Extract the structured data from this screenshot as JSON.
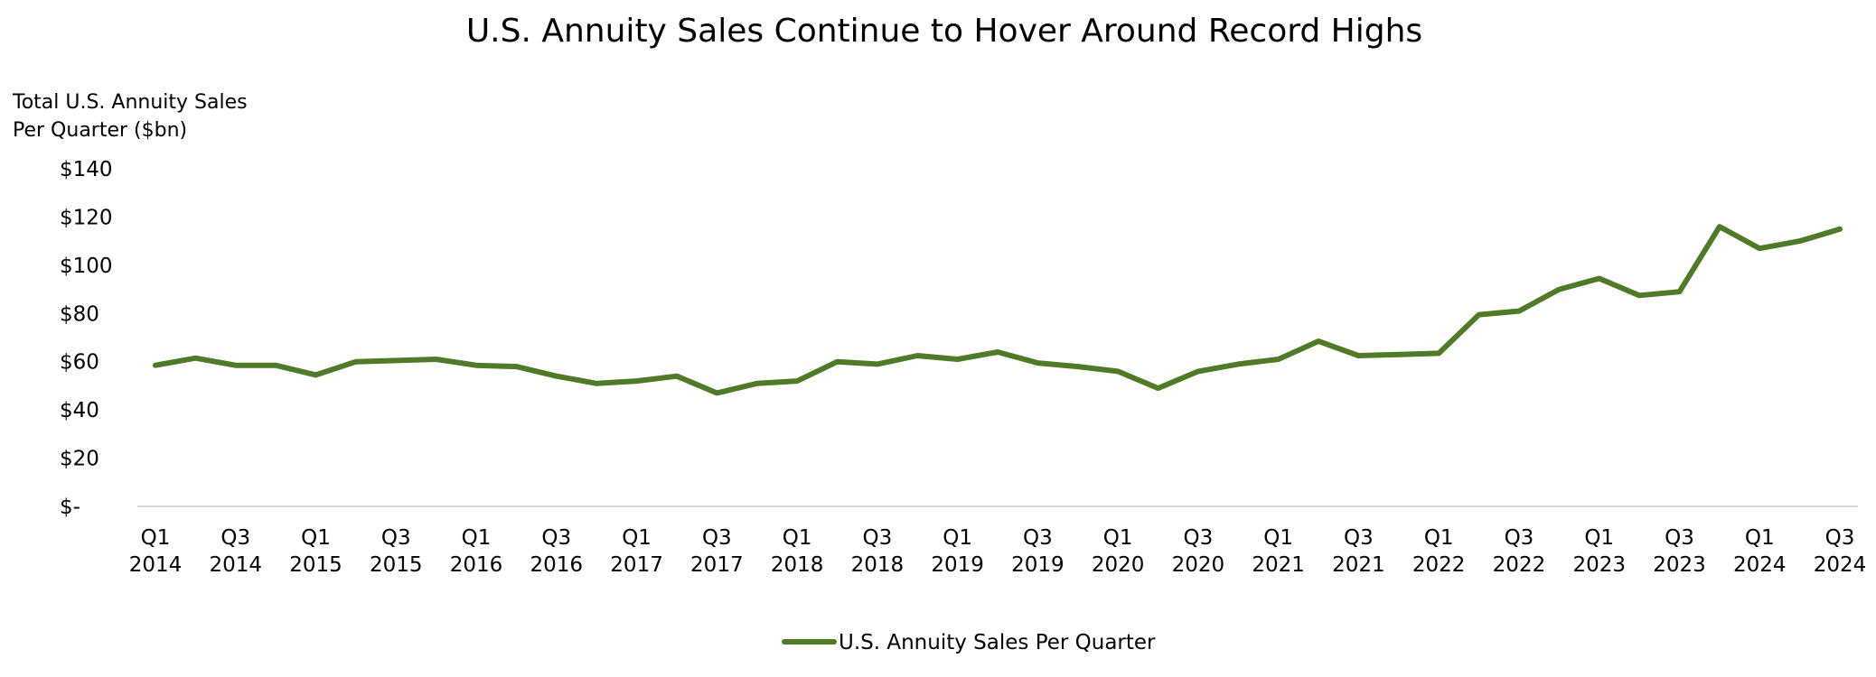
{
  "chart_data": {
    "type": "line",
    "title": "U.S. Annuity Sales Continue to Hover Around Record Highs",
    "ylabel_lines": [
      "Total U.S. Annuity Sales",
      "Per Quarter ($bn)"
    ],
    "ylim": [
      0,
      140
    ],
    "y_ticks": [
      0,
      20,
      40,
      60,
      80,
      100,
      120,
      140
    ],
    "y_tick_labels": [
      "$-",
      "$20",
      "$40",
      "$60",
      "$80",
      "$100",
      "$120",
      "$140"
    ],
    "grid": false,
    "legend_position": "bottom-center",
    "x_tick_labels": [
      [
        "Q1",
        "2014"
      ],
      [
        "Q3",
        "2014"
      ],
      [
        "Q1",
        "2015"
      ],
      [
        "Q3",
        "2015"
      ],
      [
        "Q1",
        "2016"
      ],
      [
        "Q3",
        "2016"
      ],
      [
        "Q1",
        "2017"
      ],
      [
        "Q3",
        "2017"
      ],
      [
        "Q1",
        "2018"
      ],
      [
        "Q3",
        "2018"
      ],
      [
        "Q1",
        "2019"
      ],
      [
        "Q3",
        "2019"
      ],
      [
        "Q1",
        "2020"
      ],
      [
        "Q3",
        "2020"
      ],
      [
        "Q1",
        "2021"
      ],
      [
        "Q3",
        "2021"
      ],
      [
        "Q1",
        "2022"
      ],
      [
        "Q3",
        "2022"
      ],
      [
        "Q1",
        "2023"
      ],
      [
        "Q3",
        "2023"
      ],
      [
        "Q1",
        "2024"
      ],
      [
        "Q3",
        "2024"
      ]
    ],
    "categories": [
      "Q1 2014",
      "Q2 2014",
      "Q3 2014",
      "Q4 2014",
      "Q1 2015",
      "Q2 2015",
      "Q3 2015",
      "Q4 2015",
      "Q1 2016",
      "Q2 2016",
      "Q3 2016",
      "Q4 2016",
      "Q1 2017",
      "Q2 2017",
      "Q3 2017",
      "Q4 2017",
      "Q1 2018",
      "Q2 2018",
      "Q3 2018",
      "Q4 2018",
      "Q1 2019",
      "Q2 2019",
      "Q3 2019",
      "Q4 2019",
      "Q1 2020",
      "Q2 2020",
      "Q3 2020",
      "Q4 2020",
      "Q1 2021",
      "Q2 2021",
      "Q3 2021",
      "Q4 2021",
      "Q1 2022",
      "Q2 2022",
      "Q3 2022",
      "Q4 2022",
      "Q1 2023",
      "Q2 2023",
      "Q3 2023",
      "Q4 2023",
      "Q1 2024",
      "Q2 2024",
      "Q3 2024"
    ],
    "series": [
      {
        "name": "U.S. Annuity Sales Per Quarter",
        "color": "#4f7a28",
        "values": [
          58.5,
          61.5,
          58.5,
          58.5,
          54.5,
          60.0,
          60.5,
          61.0,
          58.5,
          58.0,
          54.0,
          51.0,
          52.0,
          54.0,
          47.0,
          51.0,
          52.0,
          60.0,
          59.0,
          62.5,
          61.0,
          64.0,
          59.5,
          58.0,
          56.0,
          49.0,
          56.0,
          59.0,
          61.0,
          68.5,
          62.5,
          63.0,
          63.5,
          79.5,
          81.0,
          90.0,
          94.5,
          87.5,
          89.0,
          116.0,
          107.0,
          110.0,
          115.0
        ]
      }
    ]
  }
}
